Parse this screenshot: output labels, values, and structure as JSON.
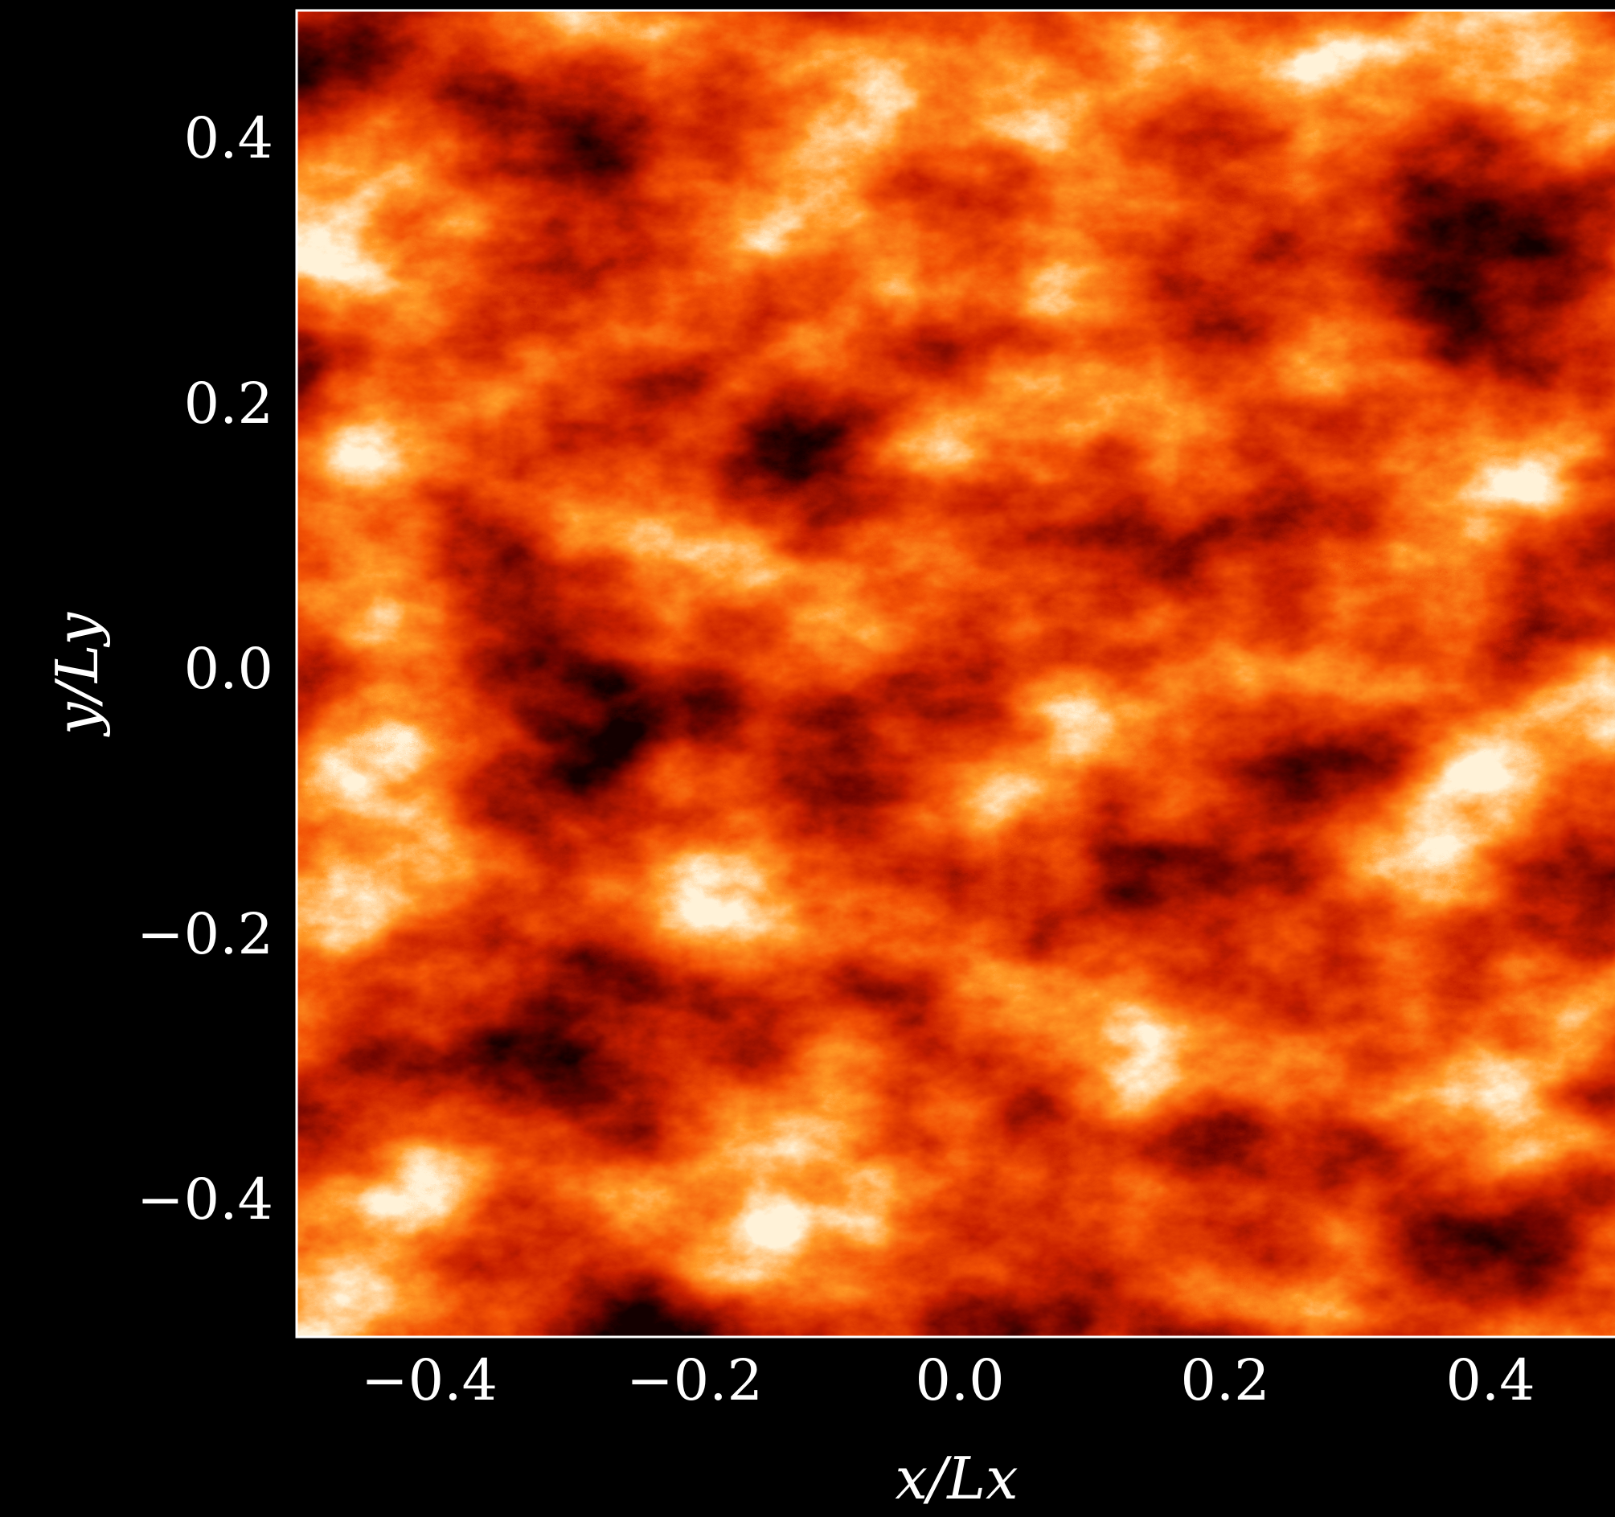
{
  "chart_data": {
    "type": "heatmap",
    "xlabel": "x/Lx",
    "ylabel": "y/Ly",
    "xlim": [
      -0.5,
      0.5
    ],
    "ylim": [
      -0.5,
      0.5
    ],
    "xticks": [
      {
        "value": -0.4,
        "label": "−0.4"
      },
      {
        "value": -0.2,
        "label": "−0.2"
      },
      {
        "value": 0,
        "label": "0.0"
      },
      0.2,
      0.4
    ],
    "yticks": [
      {
        "value": -0.4,
        "label": "−0.4"
      },
      {
        "value": -0.2,
        "label": "−0.2"
      },
      {
        "value": 0,
        "label": "0.0"
      },
      0.2,
      0.4
    ]
  }
}
